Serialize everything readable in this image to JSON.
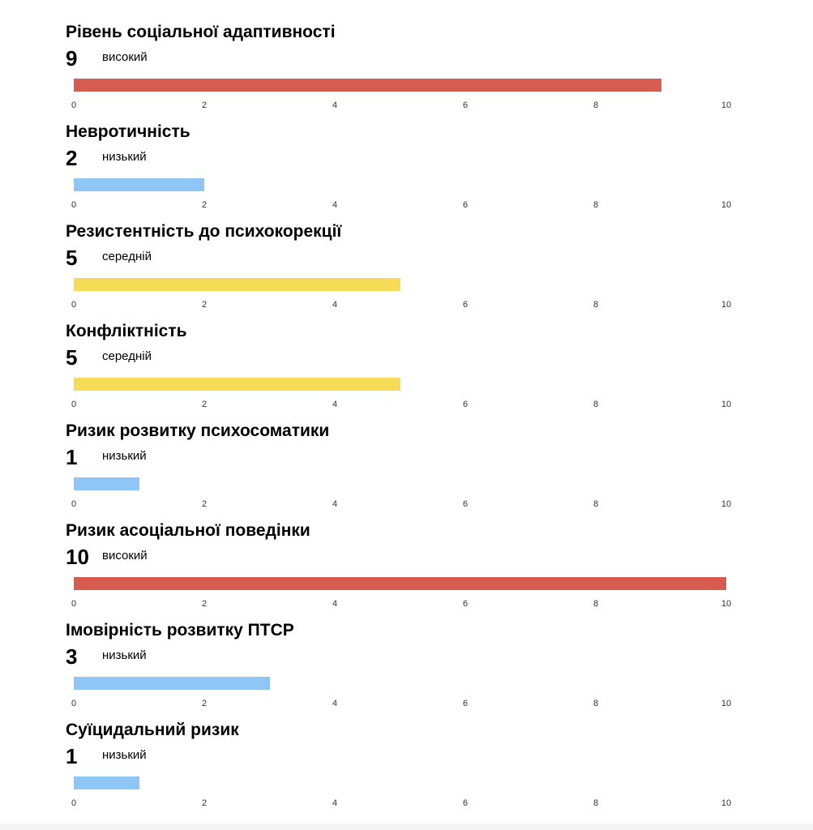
{
  "chart_data": {
    "type": "bar",
    "xlim": [
      0,
      10
    ],
    "ticks": [
      0,
      2,
      4,
      6,
      8,
      10
    ],
    "grid": false,
    "level_colors": {
      "високий": "#d65b50",
      "низький": "#8ec6f5",
      "середній": "#f6db57"
    },
    "series": [
      {
        "name": "Рівень соціальної адаптивності",
        "value": 9,
        "level": "високий"
      },
      {
        "name": "Невротичність",
        "value": 2,
        "level": "низький"
      },
      {
        "name": "Резистентність до психокорекції",
        "value": 5,
        "level": "середній"
      },
      {
        "name": "Конфліктність",
        "value": 5,
        "level": "середній"
      },
      {
        "name": "Ризик розвитку психосоматики",
        "value": 1,
        "level": "низький"
      },
      {
        "name": "Ризик асоціальної поведінки",
        "value": 10,
        "level": "високий"
      },
      {
        "name": "Імовірність розвитку ПТСР",
        "value": 3,
        "level": "низький"
      },
      {
        "name": "Суїцидальний ризик",
        "value": 1,
        "level": "низький"
      }
    ]
  }
}
